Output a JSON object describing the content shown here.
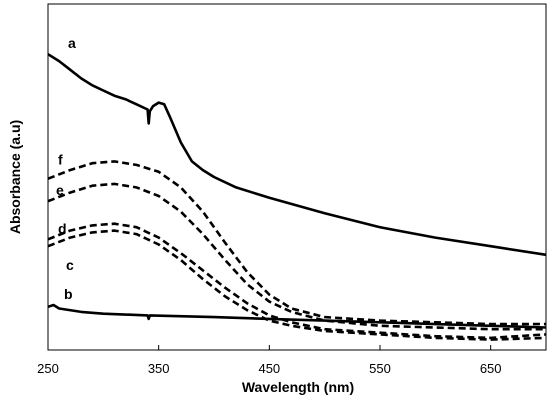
{
  "chart_data": {
    "type": "line",
    "title": "",
    "xlabel": "Wavelength (nm)",
    "ylabel": "Absorbance (a.u)",
    "xlim": [
      250,
      700
    ],
    "ylim": [
      0,
      1
    ],
    "x_ticks": [
      250,
      350,
      450,
      550,
      650
    ],
    "x_tick_labels": [
      "250",
      "350",
      "450",
      "550",
      "650"
    ],
    "y_ticks_shown": false,
    "grid": false,
    "legend": "none",
    "series": [
      {
        "name": "a",
        "style": "solid",
        "color": "#000000",
        "points": [
          [
            250,
            0.855
          ],
          [
            260,
            0.835
          ],
          [
            270,
            0.81
          ],
          [
            280,
            0.785
          ],
          [
            290,
            0.765
          ],
          [
            300,
            0.75
          ],
          [
            310,
            0.735
          ],
          [
            320,
            0.725
          ],
          [
            330,
            0.71
          ],
          [
            340,
            0.695
          ],
          [
            341,
            0.655
          ],
          [
            342,
            0.69
          ],
          [
            345,
            0.705
          ],
          [
            350,
            0.715
          ],
          [
            355,
            0.71
          ],
          [
            360,
            0.675
          ],
          [
            370,
            0.6
          ],
          [
            380,
            0.545
          ],
          [
            390,
            0.52
          ],
          [
            400,
            0.5
          ],
          [
            420,
            0.47
          ],
          [
            450,
            0.44
          ],
          [
            500,
            0.395
          ],
          [
            550,
            0.355
          ],
          [
            600,
            0.325
          ],
          [
            650,
            0.3
          ],
          [
            700,
            0.275
          ]
        ]
      },
      {
        "name": "b",
        "style": "solid",
        "color": "#000000",
        "points": [
          [
            250,
            0.125
          ],
          [
            255,
            0.13
          ],
          [
            260,
            0.12
          ],
          [
            280,
            0.11
          ],
          [
            300,
            0.105
          ],
          [
            340,
            0.1
          ],
          [
            341,
            0.09
          ],
          [
            342,
            0.1
          ],
          [
            400,
            0.095
          ],
          [
            450,
            0.09
          ],
          [
            500,
            0.085
          ],
          [
            550,
            0.08
          ],
          [
            600,
            0.075
          ],
          [
            650,
            0.07
          ],
          [
            700,
            0.065
          ]
        ]
      },
      {
        "name": "c",
        "style": "dashed",
        "color": "#000000",
        "points": [
          [
            250,
            0.3
          ],
          [
            270,
            0.325
          ],
          [
            290,
            0.34
          ],
          [
            310,
            0.345
          ],
          [
            330,
            0.335
          ],
          [
            350,
            0.305
          ],
          [
            370,
            0.26
          ],
          [
            390,
            0.205
          ],
          [
            410,
            0.155
          ],
          [
            430,
            0.115
          ],
          [
            450,
            0.085
          ],
          [
            470,
            0.07
          ],
          [
            500,
            0.055
          ],
          [
            550,
            0.045
          ],
          [
            600,
            0.035
          ],
          [
            650,
            0.03
          ],
          [
            700,
            0.035
          ]
        ]
      },
      {
        "name": "d",
        "style": "dashed",
        "color": "#000000",
        "points": [
          [
            250,
            0.32
          ],
          [
            270,
            0.345
          ],
          [
            290,
            0.36
          ],
          [
            310,
            0.365
          ],
          [
            330,
            0.355
          ],
          [
            350,
            0.325
          ],
          [
            370,
            0.28
          ],
          [
            390,
            0.23
          ],
          [
            410,
            0.18
          ],
          [
            430,
            0.135
          ],
          [
            450,
            0.1
          ],
          [
            470,
            0.08
          ],
          [
            500,
            0.06
          ],
          [
            550,
            0.05
          ],
          [
            600,
            0.04
          ],
          [
            650,
            0.035
          ],
          [
            700,
            0.045
          ]
        ]
      },
      {
        "name": "e",
        "style": "dashed",
        "color": "#000000",
        "points": [
          [
            250,
            0.43
          ],
          [
            270,
            0.455
          ],
          [
            290,
            0.475
          ],
          [
            310,
            0.48
          ],
          [
            330,
            0.47
          ],
          [
            350,
            0.445
          ],
          [
            370,
            0.4
          ],
          [
            390,
            0.335
          ],
          [
            410,
            0.26
          ],
          [
            430,
            0.19
          ],
          [
            450,
            0.14
          ],
          [
            470,
            0.11
          ],
          [
            500,
            0.085
          ],
          [
            550,
            0.07
          ],
          [
            600,
            0.065
          ],
          [
            650,
            0.06
          ],
          [
            700,
            0.06
          ]
        ]
      },
      {
        "name": "f",
        "style": "dashed",
        "color": "#000000",
        "points": [
          [
            250,
            0.495
          ],
          [
            270,
            0.52
          ],
          [
            290,
            0.54
          ],
          [
            310,
            0.545
          ],
          [
            330,
            0.535
          ],
          [
            350,
            0.515
          ],
          [
            370,
            0.47
          ],
          [
            390,
            0.4
          ],
          [
            410,
            0.31
          ],
          [
            430,
            0.225
          ],
          [
            450,
            0.16
          ],
          [
            470,
            0.12
          ],
          [
            500,
            0.095
          ],
          [
            550,
            0.085
          ],
          [
            600,
            0.08
          ],
          [
            650,
            0.075
          ],
          [
            700,
            0.075
          ]
        ]
      }
    ]
  }
}
